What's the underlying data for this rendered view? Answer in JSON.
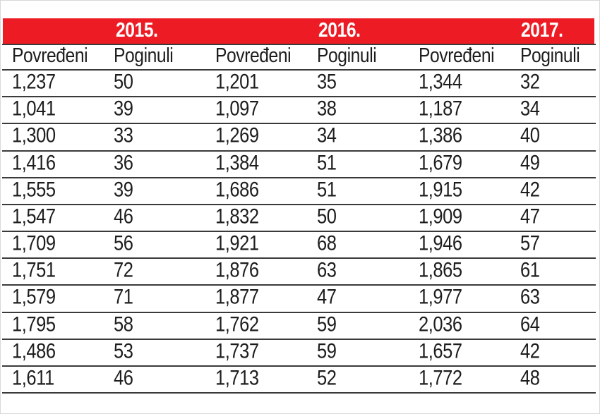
{
  "header": {
    "years": [
      "2015.",
      "2016.",
      "2017."
    ]
  },
  "colors": {
    "accent_red": "#ed1c24",
    "rule_line": "#3a3a3a",
    "text": "#1d1d1d"
  },
  "table": {
    "columns": [
      "Povređeni",
      "Poginuli",
      "Povređeni",
      "Poginuli",
      "Povređeni",
      "Poginuli"
    ],
    "rows": [
      [
        "1,237",
        "50",
        "1,201",
        "35",
        "1,344",
        "32"
      ],
      [
        "1,041",
        "39",
        "1,097",
        "38",
        "1,187",
        "34"
      ],
      [
        "1,300",
        "33",
        "1,269",
        "34",
        "1,386",
        "40"
      ],
      [
        "1,416",
        "36",
        "1,384",
        "51",
        "1,679",
        "49"
      ],
      [
        "1,555",
        "39",
        "1,686",
        "51",
        "1,915",
        "42"
      ],
      [
        "1,547",
        "46",
        "1,832",
        "50",
        "1,909",
        "47"
      ],
      [
        "1,709",
        "56",
        "1,921",
        "68",
        "1,946",
        "57"
      ],
      [
        "1,751",
        "72",
        "1,876",
        "63",
        "1,865",
        "61"
      ],
      [
        "1,579",
        "71",
        "1,877",
        "47",
        "1,977",
        "63"
      ],
      [
        "1,795",
        "58",
        "1,762",
        "59",
        "2,036",
        "64"
      ],
      [
        "1,486",
        "53",
        "1,737",
        "59",
        "1,657",
        "42"
      ],
      [
        "1,611",
        "46",
        "1,713",
        "52",
        "1,772",
        "48"
      ]
    ]
  },
  "chart_data": {
    "type": "table",
    "title": "",
    "column_groups": [
      "2015.",
      "2016.",
      "2017."
    ],
    "columns": [
      "2015. Povređeni",
      "2015. Poginuli",
      "2016. Povređeni",
      "2016. Poginuli",
      "2017. Povređeni",
      "2017. Poginuli"
    ],
    "rows": [
      [
        1237,
        50,
        1201,
        35,
        1344,
        32
      ],
      [
        1041,
        39,
        1097,
        38,
        1187,
        34
      ],
      [
        1300,
        33,
        1269,
        34,
        1386,
        40
      ],
      [
        1416,
        36,
        1384,
        51,
        1679,
        49
      ],
      [
        1555,
        39,
        1686,
        51,
        1915,
        42
      ],
      [
        1547,
        46,
        1832,
        50,
        1909,
        47
      ],
      [
        1709,
        56,
        1921,
        68,
        1946,
        57
      ],
      [
        1751,
        72,
        1876,
        63,
        1865,
        61
      ],
      [
        1579,
        71,
        1877,
        47,
        1977,
        63
      ],
      [
        1795,
        58,
        1762,
        59,
        2036,
        64
      ],
      [
        1486,
        53,
        1737,
        59,
        1657,
        42
      ],
      [
        1611,
        46,
        1713,
        52,
        1772,
        48
      ]
    ]
  }
}
